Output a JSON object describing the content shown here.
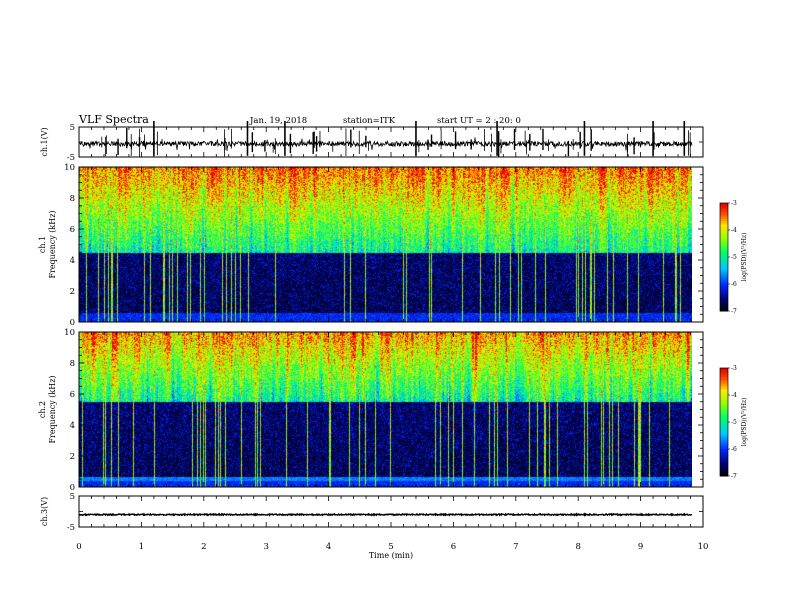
{
  "header": {
    "title": "VLF Spectra",
    "date": "Jan. 19, 2018",
    "station": "station=ITK",
    "start": "start UT =   2 : 20: 0"
  },
  "chart_data": [
    {
      "name": "ch1-waveform",
      "type": "line",
      "ylabel": "ch.1(V)",
      "ylim": [
        -5,
        5
      ],
      "yticks": [
        "5",
        "-5"
      ],
      "xlim": [
        0,
        10
      ],
      "data_extent": [
        0,
        9.83
      ]
    },
    {
      "name": "ch1-spectrogram",
      "type": "heatmap",
      "ylabel_lines": [
        "ch.1",
        "Frequency (kHz)"
      ],
      "ylim": [
        0,
        10
      ],
      "yticks": [
        "0",
        "2",
        "4",
        "6",
        "8",
        "10"
      ],
      "xlim": [
        0,
        10
      ],
      "data_extent": [
        0,
        9.83
      ],
      "colorbar": {
        "label": "log(PSD)(V²/Hz)",
        "range": [
          -7,
          -3
        ],
        "ticks": [
          "-3",
          "-4",
          "-5",
          "-6",
          "-7"
        ]
      }
    },
    {
      "name": "ch2-spectrogram",
      "type": "heatmap",
      "ylabel_lines": [
        "ch.2",
        "Frequency (kHz)"
      ],
      "ylim": [
        0,
        10
      ],
      "yticks": [
        "0",
        "2",
        "4",
        "6",
        "8",
        "10"
      ],
      "xlim": [
        0,
        10
      ],
      "data_extent": [
        0,
        9.83
      ],
      "colorbar": {
        "label": "log(PSD)(V²/Hz)",
        "range": [
          -7,
          -3
        ],
        "ticks": [
          "-3",
          "-4",
          "-5",
          "-6",
          "-7"
        ]
      }
    },
    {
      "name": "ch3-waveform",
      "type": "line",
      "ylabel": "ch.3(V)",
      "ylim": [
        -5,
        5
      ],
      "yticks": [
        "5",
        "-5"
      ],
      "xlim": [
        0,
        10
      ],
      "data_extent": [
        0,
        9.83
      ],
      "constant_value": -1.0
    }
  ],
  "xaxis": {
    "label": "Time (min)",
    "ticks": [
      "0",
      "1",
      "2",
      "3",
      "4",
      "5",
      "6",
      "7",
      "8",
      "9",
      "10"
    ]
  }
}
